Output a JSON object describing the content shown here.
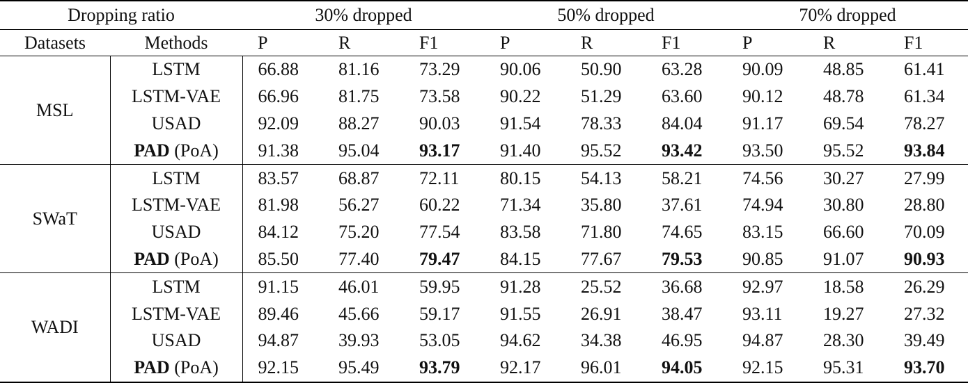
{
  "table": {
    "header": {
      "dropping_ratio": "Dropping ratio",
      "groups": [
        "30% dropped",
        "50% dropped",
        "70% dropped"
      ],
      "datasets": "Datasets",
      "methods": "Methods",
      "metrics": [
        "P",
        "R",
        "F1",
        "P",
        "R",
        "F1",
        "P",
        "R",
        "F1"
      ]
    },
    "datasets": [
      {
        "name": "MSL",
        "rows": [
          {
            "method": "LSTM",
            "suffix": "",
            "values": [
              "66.88",
              "81.16",
              "73.29",
              "90.06",
              "50.90",
              "63.28",
              "90.09",
              "48.85",
              "61.41"
            ]
          },
          {
            "method": "LSTM-VAE",
            "suffix": "",
            "values": [
              "66.96",
              "81.75",
              "73.58",
              "90.22",
              "51.29",
              "63.60",
              "90.12",
              "48.78",
              "61.34"
            ]
          },
          {
            "method": "USAD",
            "suffix": "",
            "values": [
              "92.09",
              "88.27",
              "90.03",
              "91.54",
              "78.33",
              "84.04",
              "91.17",
              "69.54",
              "78.27"
            ]
          },
          {
            "method": "PAD",
            "suffix": " (PoA)",
            "values": [
              "91.38",
              "95.04",
              "93.17",
              "91.40",
              "95.52",
              "93.42",
              "93.50",
              "95.52",
              "93.84"
            ]
          }
        ]
      },
      {
        "name": "SWaT",
        "rows": [
          {
            "method": "LSTM",
            "suffix": "",
            "values": [
              "83.57",
              "68.87",
              "72.11",
              "80.15",
              "54.13",
              "58.21",
              "74.56",
              "30.27",
              "27.99"
            ]
          },
          {
            "method": "LSTM-VAE",
            "suffix": "",
            "values": [
              "81.98",
              "56.27",
              "60.22",
              "71.34",
              "35.80",
              "37.61",
              "74.94",
              "30.80",
              "28.80"
            ]
          },
          {
            "method": "USAD",
            "suffix": "",
            "values": [
              "84.12",
              "75.20",
              "77.54",
              "83.58",
              "71.80",
              "74.65",
              "83.15",
              "66.60",
              "70.09"
            ]
          },
          {
            "method": "PAD",
            "suffix": " (PoA)",
            "values": [
              "85.50",
              "77.40",
              "79.47",
              "84.15",
              "77.67",
              "79.53",
              "90.85",
              "91.07",
              "90.93"
            ]
          }
        ]
      },
      {
        "name": "WADI",
        "rows": [
          {
            "method": "LSTM",
            "suffix": "",
            "values": [
              "91.15",
              "46.01",
              "59.95",
              "91.28",
              "25.52",
              "36.68",
              "92.97",
              "18.58",
              "26.29"
            ]
          },
          {
            "method": "LSTM-VAE",
            "suffix": "",
            "values": [
              "89.46",
              "45.66",
              "59.17",
              "91.55",
              "26.91",
              "38.47",
              "93.11",
              "19.27",
              "27.32"
            ]
          },
          {
            "method": "USAD",
            "suffix": "",
            "values": [
              "94.87",
              "39.93",
              "53.05",
              "94.62",
              "34.38",
              "46.95",
              "94.87",
              "28.30",
              "39.49"
            ]
          },
          {
            "method": "PAD",
            "suffix": " (PoA)",
            "values": [
              "92.15",
              "95.49",
              "93.79",
              "92.17",
              "96.01",
              "94.05",
              "92.15",
              "95.31",
              "93.70"
            ]
          }
        ]
      }
    ]
  }
}
